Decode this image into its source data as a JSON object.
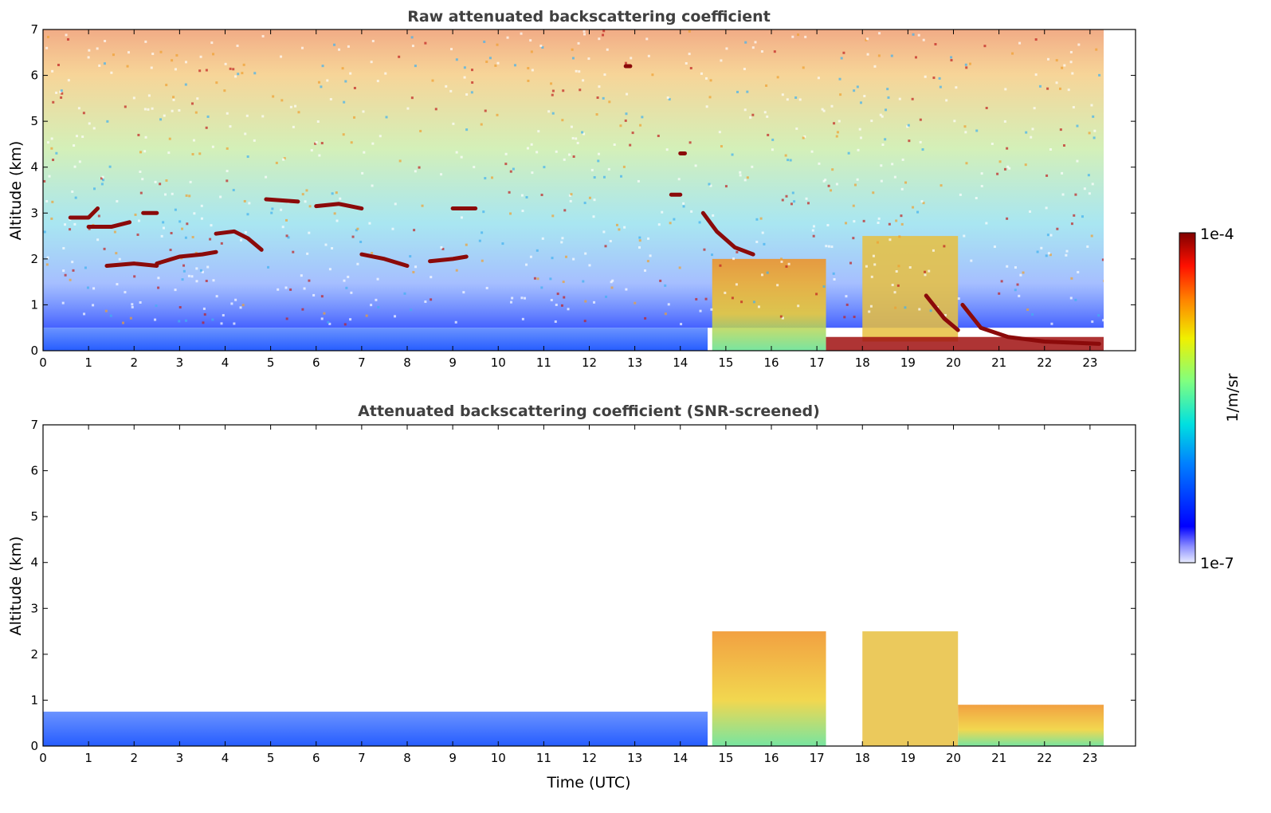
{
  "chart_data": [
    {
      "type": "heatmap",
      "title": "Raw attenuated backscattering coefficient",
      "xlabel": "",
      "ylabel": "Altitude (km)",
      "xlim": [
        0,
        24
      ],
      "ylim": [
        0,
        7
      ],
      "x_ticks": [
        0,
        1,
        2,
        3,
        4,
        5,
        6,
        7,
        8,
        9,
        10,
        11,
        12,
        13,
        14,
        15,
        16,
        17,
        18,
        19,
        20,
        21,
        22,
        23
      ],
      "y_ticks": [
        0,
        1,
        2,
        3,
        4,
        5,
        6,
        7
      ],
      "data_end_time": 23.3,
      "colorscale": "jet",
      "layers": [
        {
          "label": "noisy background aloft",
          "x": [
            0,
            23.3
          ],
          "y": [
            0.5,
            7
          ],
          "level": "high noise, increasing with altitude"
        },
        {
          "label": "boundary layer aerosol",
          "x": [
            0,
            14.6
          ],
          "y": [
            0,
            0.5
          ],
          "level": "low (blue)"
        },
        {
          "label": "aerosol / cloud",
          "x": [
            14.7,
            17.2
          ],
          "y": [
            0,
            2.0
          ],
          "level": "medium (green-yellow-orange)"
        },
        {
          "label": "clouds",
          "x": [
            18.0,
            20.1
          ],
          "y": [
            0.2,
            2.5
          ],
          "level": "medium-high"
        },
        {
          "label": "low cloud base",
          "x": [
            17.2,
            23.3
          ],
          "y": [
            0,
            0.3
          ],
          "level": "high (dark red)"
        }
      ],
      "cloud_traces": [
        {
          "x": [
            0.6,
            1.0,
            1.2
          ],
          "y": [
            2.9,
            2.9,
            3.1
          ]
        },
        {
          "x": [
            1.0,
            1.5,
            1.9
          ],
          "y": [
            2.7,
            2.7,
            2.8
          ]
        },
        {
          "x": [
            2.2,
            2.5
          ],
          "y": [
            3.0,
            3.0
          ]
        },
        {
          "x": [
            1.4,
            2.0,
            2.5
          ],
          "y": [
            1.85,
            1.9,
            1.85
          ]
        },
        {
          "x": [
            2.5,
            3.0,
            3.5,
            3.8
          ],
          "y": [
            1.9,
            2.05,
            2.1,
            2.15
          ]
        },
        {
          "x": [
            3.8,
            4.2,
            4.5,
            4.8
          ],
          "y": [
            2.55,
            2.6,
            2.45,
            2.2
          ]
        },
        {
          "x": [
            4.9,
            5.6
          ],
          "y": [
            3.3,
            3.25
          ]
        },
        {
          "x": [
            6.0,
            6.5,
            7.0
          ],
          "y": [
            3.15,
            3.2,
            3.1
          ]
        },
        {
          "x": [
            7.0,
            7.5,
            8.0
          ],
          "y": [
            2.1,
            2.0,
            1.85
          ]
        },
        {
          "x": [
            8.5,
            9.0,
            9.3
          ],
          "y": [
            1.95,
            2.0,
            2.05
          ]
        },
        {
          "x": [
            9.0,
            9.5
          ],
          "y": [
            3.1,
            3.1
          ]
        },
        {
          "x": [
            14.5,
            14.8,
            15.2,
            15.6
          ],
          "y": [
            3.0,
            2.6,
            2.25,
            2.1
          ]
        },
        {
          "x": [
            13.8,
            14.0
          ],
          "y": [
            3.4,
            3.4
          ]
        },
        {
          "x": [
            14.0,
            14.1
          ],
          "y": [
            4.3,
            4.3
          ]
        },
        {
          "x": [
            12.8,
            12.9
          ],
          "y": [
            6.2,
            6.2
          ]
        },
        {
          "x": [
            19.4,
            19.8,
            20.1
          ],
          "y": [
            1.2,
            0.7,
            0.45
          ]
        },
        {
          "x": [
            20.2,
            20.6,
            21.2,
            22.0,
            23.2
          ],
          "y": [
            1.0,
            0.5,
            0.3,
            0.2,
            0.15
          ]
        }
      ]
    },
    {
      "type": "heatmap",
      "title": "Attenuated backscattering coefficient (SNR-screened)",
      "xlabel": "Time (UTC)",
      "ylabel": "Altitude (km)",
      "xlim": [
        0,
        24
      ],
      "ylim": [
        0,
        7
      ],
      "x_ticks": [
        0,
        1,
        2,
        3,
        4,
        5,
        6,
        7,
        8,
        9,
        10,
        11,
        12,
        13,
        14,
        15,
        16,
        17,
        18,
        19,
        20,
        21,
        22,
        23
      ],
      "y_ticks": [
        0,
        1,
        2,
        3,
        4,
        5,
        6,
        7
      ],
      "data_end_time": 23.3,
      "colorscale": "jet",
      "layers": [
        {
          "label": "boundary layer aerosol",
          "x": [
            0,
            14.6
          ],
          "y": [
            0,
            0.75
          ],
          "level": "low (blue)"
        },
        {
          "label": "aerosol / cloud",
          "x": [
            14.7,
            17.2
          ],
          "y": [
            0,
            2.5
          ],
          "level": "medium (green-yellow-orange)"
        },
        {
          "label": "clouds",
          "x": [
            18.0,
            20.1
          ],
          "y": [
            0,
            2.5
          ],
          "level": "medium-high"
        },
        {
          "label": "low cloud / aerosol",
          "x": [
            20.1,
            23.3
          ],
          "y": [
            0,
            0.9
          ],
          "level": "medium"
        }
      ]
    }
  ],
  "colorbar": {
    "max_label": "1e-4",
    "min_label": "1e-7",
    "unit_label": "1/m/sr",
    "scale": "log"
  }
}
